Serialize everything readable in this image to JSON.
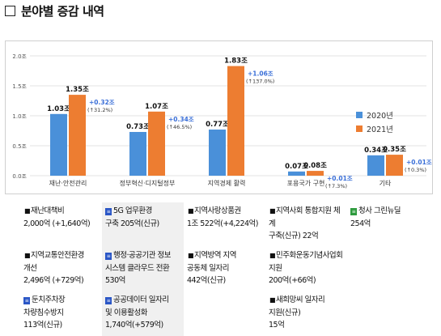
{
  "page": {
    "title": "분야별 증감 내역"
  },
  "chart_data": {
    "type": "bar",
    "categories": [
      "재난·안전관리",
      "정부혁신·디지털정부",
      "지역경제 활력",
      "포용국가 구현",
      "기타"
    ],
    "series": [
      {
        "name": "2020년",
        "color": "#4a90d9",
        "values": [
          1.03,
          0.73,
          0.77,
          0.07,
          0.34
        ],
        "labels": [
          "1.03조",
          "0.73조",
          "0.77조",
          "0.07조",
          "0.34조"
        ]
      },
      {
        "name": "2021년",
        "color": "#ed7d31",
        "values": [
          1.35,
          1.07,
          1.83,
          0.08,
          0.35
        ],
        "labels": [
          "1.35조",
          "1.07조",
          "1.83조",
          "0.08조",
          "0.35조"
        ]
      }
    ],
    "change": [
      {
        "amount": "+0.32조",
        "pct": "(↑31.2%)"
      },
      {
        "amount": "+0.34조",
        "pct": "(↑46.5%)"
      },
      {
        "amount": "+1.06조",
        "pct": "(↑137.0%)"
      },
      {
        "amount": "+0.01조",
        "pct": "(↑7.3%)"
      },
      {
        "amount": "+0.01조",
        "pct": "(↑0.3%)"
      }
    ],
    "yticks": [
      "0.0조",
      "0.5조",
      "1.0조",
      "1.5조",
      "2.0조"
    ],
    "ylim": [
      0,
      2.0
    ],
    "grid": true,
    "legend_position": "top-right",
    "xlabel": "",
    "ylabel": ""
  },
  "notes": {
    "rows": [
      [
        {
          "icon": "bullet",
          "text": "재난대책비\n2,000억 (+1,640억)",
          "shade": false
        },
        {
          "icon": "badge-blue",
          "text": "5G 업무환경\n구축 205억(신규)",
          "shade": true
        },
        {
          "icon": "bullet",
          "text": "지역사랑상품권\n1조 522억(+4,224억)",
          "shade": false
        },
        {
          "icon": "bullet",
          "text": "지역사회 통합지원 체계\n구축(신규) 22억",
          "shade": false
        },
        {
          "icon": "badge-green",
          "text": "청사 그린뉴딜\n254억",
          "shade": false
        }
      ],
      [
        {
          "icon": "bullet",
          "text": "지역교통안전환경\n개선\n2,496억 (+729억)",
          "shade": false
        },
        {
          "icon": "badge-blue",
          "text": "행정·공공기관 정보\n시스템 클라우드 전환\n530억",
          "shade": true
        },
        {
          "icon": "bullet",
          "text": "지역방역 지역\n공동체 일자리\n442억(신규)",
          "shade": false
        },
        {
          "icon": "bullet",
          "text": "민주화운동기념사업회\n지원\n200억(+66억)",
          "shade": false
        },
        {
          "icon": "none",
          "text": "",
          "shade": false
        }
      ],
      [
        {
          "icon": "badge-blue",
          "text": "둔치주차장\n차량침수방지\n113억(신규)",
          "shade": false
        },
        {
          "icon": "badge-blue",
          "text": "공공데이터 일자리\n및 이용활성화\n1,740억(+579억)",
          "shade": true
        },
        {
          "icon": "none",
          "text": "",
          "shade": false
        },
        {
          "icon": "bullet",
          "text": "새희망씨 일자리\n지원(신규)\n15억",
          "shade": false
        },
        {
          "icon": "none",
          "text": "",
          "shade": false
        }
      ]
    ]
  }
}
